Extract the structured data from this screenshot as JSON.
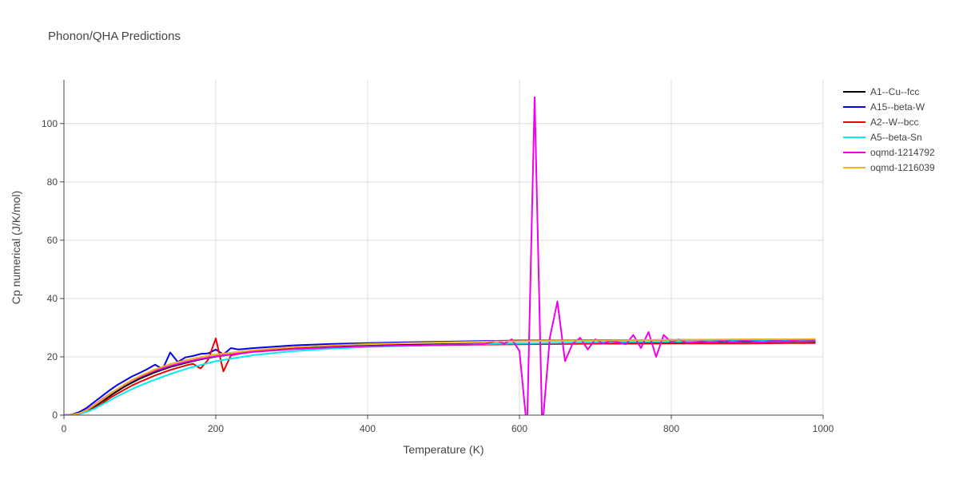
{
  "chart_data": {
    "type": "line",
    "title": "Phonon/QHA Predictions",
    "xlabel": "Temperature (K)",
    "ylabel": "Cp numerical (J/K/mol)",
    "xlim": [
      0,
      1000
    ],
    "ylim": [
      0,
      115
    ],
    "xticks": [
      0,
      200,
      400,
      600,
      800,
      1000
    ],
    "yticks": [
      0,
      20,
      40,
      60,
      80,
      100
    ],
    "grid": true,
    "legend_position": "top-right",
    "series": [
      {
        "name": "A1--Cu--fcc",
        "color": "#000000",
        "x": [
          0,
          10,
          20,
          30,
          40,
          50,
          60,
          70,
          80,
          90,
          100,
          120,
          140,
          160,
          180,
          200,
          250,
          300,
          350,
          400,
          450,
          500,
          550,
          600,
          650,
          700,
          750,
          800,
          850,
          900,
          950,
          990
        ],
        "y": [
          0,
          0.1,
          0.5,
          1.5,
          3.0,
          4.7,
          6.5,
          8.2,
          9.8,
          11.2,
          12.5,
          14.7,
          16.5,
          17.9,
          19.1,
          20.1,
          21.8,
          22.8,
          23.4,
          23.8,
          24.1,
          24.3,
          24.5,
          24.6,
          24.7,
          24.8,
          24.9,
          25.0,
          25.1,
          25.2,
          25.3,
          25.3
        ]
      },
      {
        "name": "A15--beta-W",
        "color": "#0000ee",
        "x": [
          0,
          10,
          20,
          30,
          40,
          50,
          60,
          70,
          80,
          90,
          100,
          110,
          120,
          130,
          140,
          150,
          160,
          170,
          180,
          190,
          200,
          210,
          220,
          230,
          250,
          300,
          350,
          400,
          450,
          500,
          550,
          600,
          650,
          700,
          750,
          800,
          850,
          900,
          950,
          990
        ],
        "y": [
          0,
          0.2,
          1.0,
          2.5,
          4.5,
          6.5,
          8.5,
          10.3,
          11.8,
          13.3,
          14.5,
          15.8,
          17.3,
          15.8,
          21.5,
          18.2,
          19.8,
          20.3,
          21.0,
          21.2,
          22.5,
          20.8,
          23.0,
          22.5,
          23.0,
          23.9,
          24.4,
          24.7,
          25.0,
          25.2,
          25.4,
          25.6,
          25.6,
          25.7,
          25.7,
          25.8,
          25.8,
          25.8,
          25.8,
          25.8
        ]
      },
      {
        "name": "A2--W--bcc",
        "color": "#ee0000",
        "x": [
          0,
          10,
          20,
          30,
          40,
          50,
          60,
          70,
          80,
          90,
          100,
          120,
          140,
          160,
          170,
          180,
          190,
          200,
          210,
          220,
          230,
          250,
          300,
          350,
          400,
          450,
          500,
          550,
          600,
          650,
          700,
          750,
          800,
          850,
          900,
          950,
          990
        ],
        "y": [
          0,
          0.1,
          0.4,
          1.2,
          2.5,
          4.0,
          5.8,
          7.3,
          8.8,
          10.2,
          11.4,
          13.6,
          15.5,
          17.0,
          17.6,
          16.0,
          19.0,
          26.3,
          15.0,
          20.5,
          21.0,
          21.8,
          22.7,
          23.2,
          23.6,
          23.8,
          24.0,
          24.2,
          24.3,
          24.4,
          24.5,
          24.5,
          24.6,
          24.6,
          24.6,
          24.7,
          24.7
        ]
      },
      {
        "name": "A5--beta-Sn",
        "color": "#00eeee",
        "x": [
          0,
          10,
          20,
          30,
          40,
          50,
          60,
          70,
          80,
          90,
          100,
          120,
          140,
          160,
          180,
          200,
          250,
          300,
          350,
          400,
          450,
          500,
          550,
          600,
          650,
          700,
          750,
          800,
          850,
          900,
          950,
          990
        ],
        "y": [
          0,
          0.1,
          0.4,
          1.1,
          2.2,
          3.6,
          5.0,
          6.4,
          7.7,
          9.0,
          10.1,
          12.2,
          14.1,
          15.8,
          17.2,
          18.5,
          20.6,
          21.9,
          22.8,
          23.4,
          23.8,
          24.1,
          24.4,
          24.6,
          24.8,
          25.0,
          25.1,
          25.2,
          25.3,
          25.4,
          25.4,
          25.5
        ]
      },
      {
        "name": "oqmd-1214792",
        "color": "#ee00ee",
        "x": [
          0,
          10,
          20,
          30,
          40,
          50,
          60,
          70,
          80,
          90,
          100,
          120,
          140,
          160,
          180,
          200,
          250,
          300,
          350,
          400,
          450,
          500,
          550,
          560,
          570,
          580,
          590,
          600,
          610,
          620,
          630,
          640,
          650,
          660,
          670,
          680,
          690,
          700,
          710,
          720,
          730,
          740,
          750,
          760,
          770,
          780,
          790,
          800,
          810,
          820,
          830,
          840,
          850,
          860,
          870,
          880,
          890,
          900,
          910,
          920,
          930,
          940,
          950,
          960,
          970,
          980,
          990
        ],
        "y": [
          0,
          0.1,
          0.6,
          1.8,
          3.5,
          5.4,
          7.2,
          8.9,
          10.5,
          11.9,
          13.1,
          15.2,
          16.9,
          18.2,
          19.3,
          20.2,
          21.7,
          22.6,
          23.2,
          23.6,
          23.9,
          24.1,
          24.3,
          24.8,
          25.5,
          24.5,
          26.0,
          22.0,
          -5.0,
          109.0,
          -5.0,
          26.5,
          39.0,
          18.5,
          24.5,
          26.5,
          22.5,
          26.0,
          24.5,
          25.5,
          25.0,
          24.3,
          27.5,
          23.0,
          28.5,
          20.0,
          27.5,
          25.0,
          26.0,
          24.8,
          25.0,
          25.3,
          25.0,
          25.2,
          25.5,
          25.0,
          25.3,
          25.5,
          25.2,
          25.0,
          25.3,
          25.4,
          25.2,
          25.5,
          25.3,
          25.4,
          25.5
        ]
      },
      {
        "name": "oqmd-1216039",
        "color": "#f0b020",
        "x": [
          0,
          10,
          20,
          30,
          40,
          50,
          60,
          70,
          80,
          90,
          100,
          120,
          140,
          160,
          180,
          200,
          250,
          300,
          350,
          400,
          450,
          500,
          550,
          600,
          650,
          700,
          750,
          800,
          850,
          900,
          950,
          990
        ],
        "y": [
          0,
          0.1,
          0.6,
          1.7,
          3.4,
          5.2,
          7.1,
          8.9,
          10.6,
          12.1,
          13.4,
          15.7,
          17.5,
          18.8,
          19.9,
          20.8,
          22.3,
          23.3,
          23.9,
          24.4,
          24.7,
          25.0,
          25.2,
          25.4,
          25.5,
          25.6,
          25.7,
          25.8,
          25.9,
          26.0,
          26.0,
          26.1
        ]
      }
    ]
  }
}
